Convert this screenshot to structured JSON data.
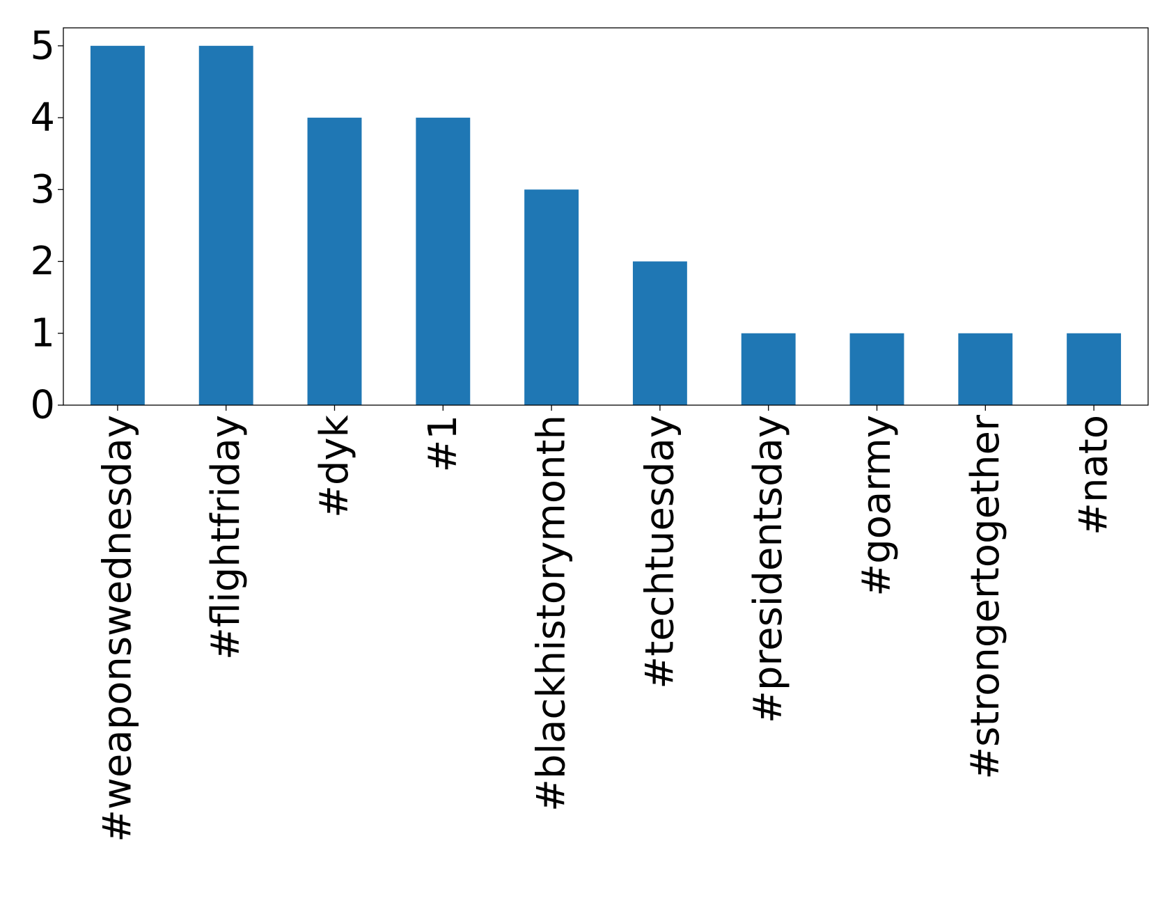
{
  "chart_data": {
    "type": "bar",
    "title": "",
    "xlabel": "",
    "ylabel": "",
    "categories": [
      "#weaponswednesday",
      "#flightfriday",
      "#dyk",
      "#1",
      "#blackhistorymonth",
      "#techtuesday",
      "#presidentsday",
      "#goarmy",
      "#strongertogether",
      "#nato"
    ],
    "values": [
      5,
      5,
      4,
      4,
      3,
      2,
      1,
      1,
      1,
      1
    ],
    "ylim": [
      0,
      5.25
    ],
    "yticks": [
      "0",
      "1",
      "2",
      "3",
      "4",
      "5"
    ],
    "bar_color": "#1f77b4",
    "grid": false,
    "legend": "none"
  }
}
